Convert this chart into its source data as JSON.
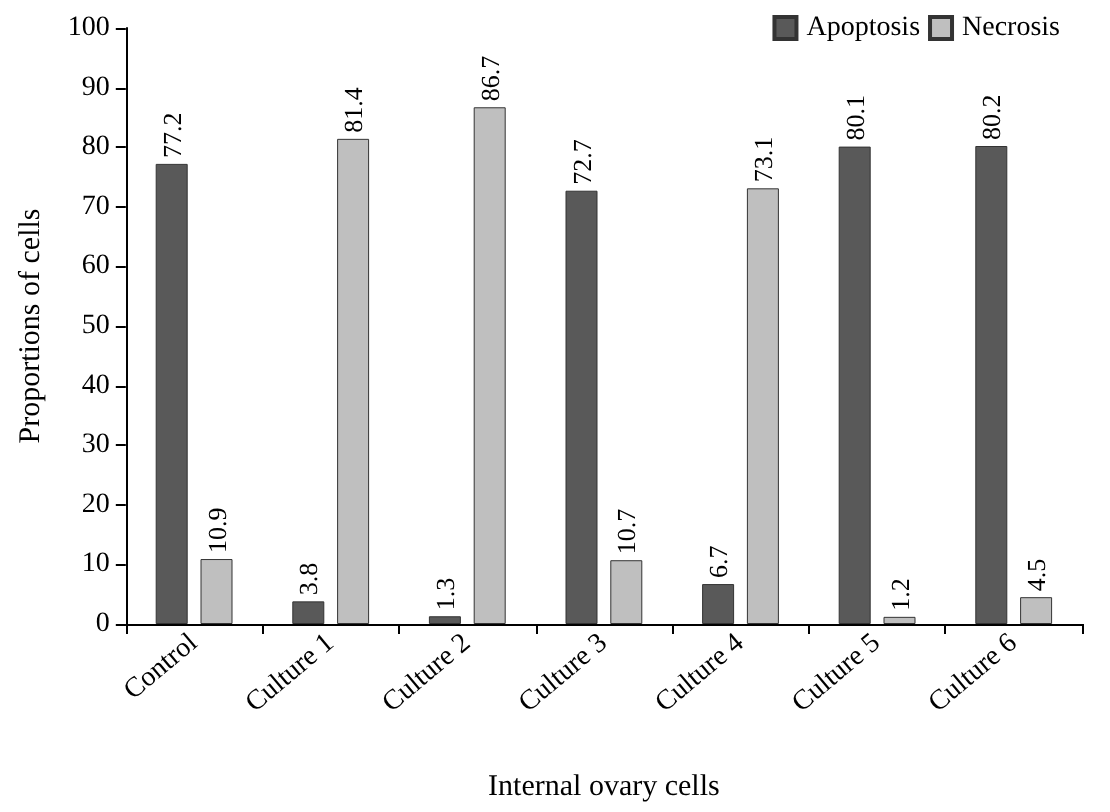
{
  "chart_data": {
    "type": "bar",
    "xlabel": "Internal ovary cells",
    "ylabel": "Proportions of cells",
    "categories": [
      "Control",
      "Culture 1",
      "Culture 2",
      "Culture 3",
      "Culture 4",
      "Culture 5",
      "Culture 6"
    ],
    "series": [
      {
        "name": "Apoptosis",
        "color": "#595959",
        "values": [
          77.2,
          3.8,
          1.3,
          72.7,
          6.7,
          80.1,
          80.2
        ]
      },
      {
        "name": "Necrosis",
        "color": "#bfbfbf",
        "values": [
          10.9,
          81.4,
          86.7,
          10.7,
          73.1,
          1.2,
          4.5
        ]
      }
    ],
    "ylim": [
      0,
      100
    ],
    "yticks": [
      0,
      10,
      20,
      30,
      40,
      50,
      60,
      70,
      80,
      90,
      100
    ],
    "grid": false,
    "legend": "top right",
    "data_labels": true
  }
}
